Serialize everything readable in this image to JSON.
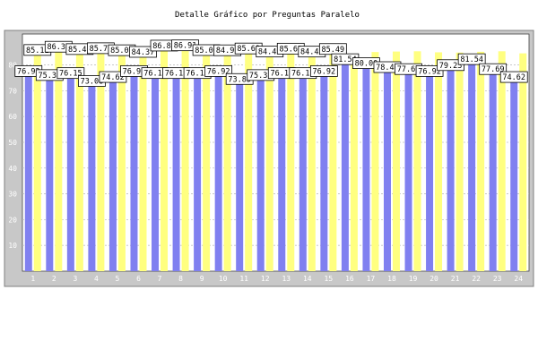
{
  "chart_data": {
    "type": "bar",
    "title": "Detalle Gráfico por Preguntas Paralelo",
    "categories": [
      "1",
      "2",
      "3",
      "4",
      "5",
      "6",
      "7",
      "8",
      "9",
      "10",
      "11",
      "12",
      "13",
      "14",
      "15",
      "16",
      "17",
      "18",
      "19",
      "20",
      "21",
      "22",
      "23",
      "24"
    ],
    "series": [
      {
        "color": "#8080f0",
        "values": [
          76.92,
          75.38,
          76.15,
          73.08,
          74.62,
          76.92,
          76.15,
          76.15,
          76.15,
          76.92,
          73.85,
          75.38,
          76.15,
          76.15,
          76.92,
          81.54,
          80.0,
          78.46,
          77.69,
          76.92,
          79.23,
          81.54,
          77.69,
          74.62
        ]
      },
      {
        "color": "#ffff80",
        "values": [
          85.11,
          86.37,
          85.45,
          85.79,
          85.01,
          84.37,
          86.81,
          86.91,
          85.06,
          84.99,
          85.69,
          84.49,
          85.63,
          84.48,
          85.49,
          82.8,
          85.0,
          85.2,
          85.3,
          84.9,
          84.8,
          85.1,
          85.3,
          84.5
        ]
      }
    ],
    "data_labels": [
      {
        "category": "1",
        "series": 1,
        "text": "85.11"
      },
      {
        "category": "1",
        "series": 0,
        "text": "76.92"
      },
      {
        "category": "2",
        "series": 1,
        "text": "86.37"
      },
      {
        "category": "2",
        "series": 0,
        "text": "75.38"
      },
      {
        "category": "3",
        "series": 1,
        "text": "85.45"
      },
      {
        "category": "3",
        "series": 0,
        "text": "76.15"
      },
      {
        "category": "4",
        "series": 1,
        "text": "85.79"
      },
      {
        "category": "4",
        "series": 0,
        "text": "73.08"
      },
      {
        "category": "5",
        "series": 1,
        "text": "85.01"
      },
      {
        "category": "5",
        "series": 0,
        "text": "74.62"
      },
      {
        "category": "6",
        "series": 1,
        "text": "84.37"
      },
      {
        "category": "6",
        "series": 0,
        "text": "76.92"
      },
      {
        "category": "7",
        "series": 1,
        "text": "86.81"
      },
      {
        "category": "7",
        "series": 0,
        "text": "76.15"
      },
      {
        "category": "8",
        "series": 1,
        "text": "86.91"
      },
      {
        "category": "8",
        "series": 0,
        "text": "76.15"
      },
      {
        "category": "9",
        "series": 1,
        "text": "85.06"
      },
      {
        "category": "9",
        "series": 0,
        "text": "76.15"
      },
      {
        "category": "10",
        "series": 1,
        "text": "84.99"
      },
      {
        "category": "10",
        "series": 0,
        "text": "76.92"
      },
      {
        "category": "11",
        "series": 1,
        "text": "85.69"
      },
      {
        "category": "11",
        "series": 0,
        "text": "73.85"
      },
      {
        "category": "12",
        "series": 1,
        "text": "84.49"
      },
      {
        "category": "12",
        "series": 0,
        "text": "75.38"
      },
      {
        "category": "13",
        "series": 1,
        "text": "85.63"
      },
      {
        "category": "13",
        "series": 0,
        "text": "76.15"
      },
      {
        "category": "14",
        "series": 1,
        "text": "84.48"
      },
      {
        "category": "14",
        "series": 0,
        "text": "76.15"
      },
      {
        "category": "15",
        "series": 1,
        "text": "85.49"
      },
      {
        "category": "15",
        "series": 0,
        "text": "76.92"
      },
      {
        "category": "16",
        "series": 0,
        "text": "81.54"
      },
      {
        "category": "17",
        "series": 0,
        "text": "80.00"
      },
      {
        "category": "18",
        "series": 0,
        "text": "78.46"
      },
      {
        "category": "19",
        "series": 0,
        "text": "77.69"
      },
      {
        "category": "20",
        "series": 0,
        "text": "76.92"
      },
      {
        "category": "21",
        "series": 0,
        "text": "79.23"
      },
      {
        "category": "22",
        "series": 0,
        "text": "81.54"
      },
      {
        "category": "23",
        "series": 0,
        "text": "77.69"
      },
      {
        "category": "24",
        "series": 0,
        "text": "74.62"
      }
    ],
    "yticks": [
      10,
      20,
      30,
      40,
      50,
      60,
      70,
      80
    ],
    "ylim": [
      0,
      92
    ],
    "grid": true,
    "legend": "none",
    "xlabel": "",
    "ylabel": ""
  }
}
